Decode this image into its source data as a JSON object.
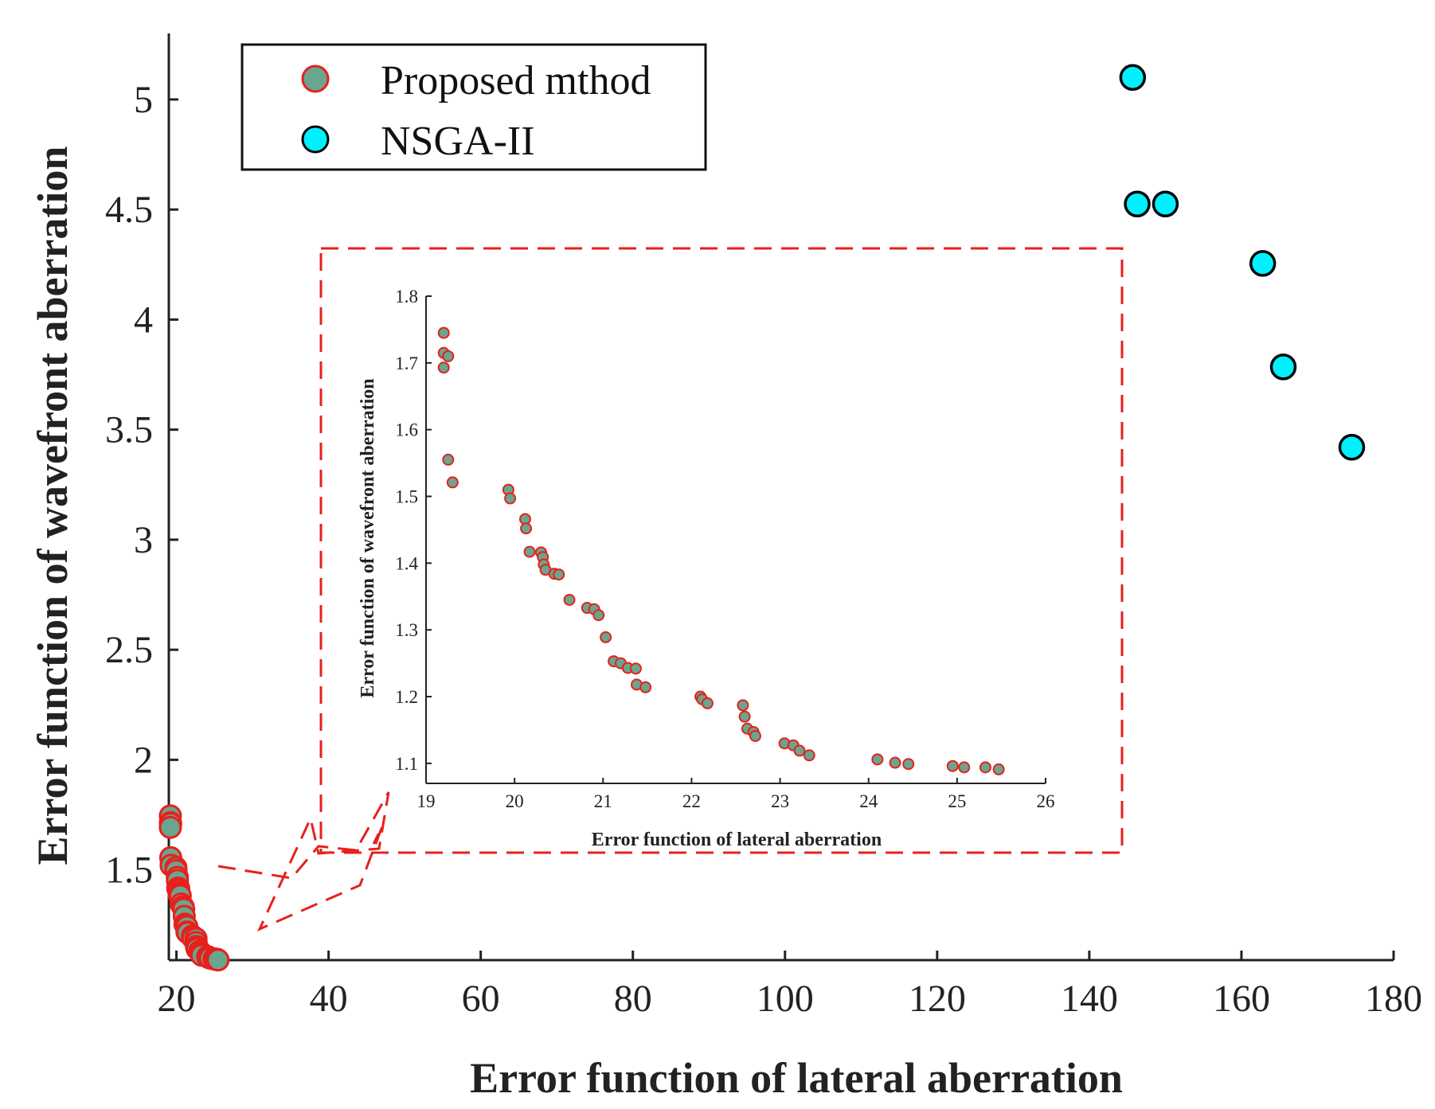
{
  "colors": {
    "proposed_fill": "#6aa58f",
    "proposed_edge": "#e8201c",
    "nsga_fill": "#00f0ff",
    "nsga_edge": "#000000",
    "box": "#e8201c",
    "axis": "#222222"
  },
  "chart_data": [
    {
      "type": "scatter",
      "name": "main",
      "xlabel": "Error function of lateral aberration",
      "ylabel": "Error function of wavefront aberration",
      "xlim": [
        19,
        180
      ],
      "ylim": [
        1.09,
        5.3
      ],
      "xticks": [
        "20",
        "40",
        "60",
        "80",
        "100",
        "120",
        "140",
        "160",
        "180"
      ],
      "yticks": [
        "1.5",
        "2",
        "2.5",
        "3",
        "3.5",
        "4",
        "4.5",
        "5"
      ],
      "legend": {
        "position": "top-left",
        "entries": [
          "Proposed mthod",
          "NSGA-II"
        ]
      },
      "series": [
        {
          "name": "Proposed mthod",
          "points": [
            [
              19.2,
              1.745
            ],
            [
              19.2,
              1.715
            ],
            [
              19.25,
              1.71
            ],
            [
              19.2,
              1.693
            ],
            [
              19.25,
              1.555
            ],
            [
              19.3,
              1.521
            ],
            [
              19.93,
              1.51
            ],
            [
              19.95,
              1.497
            ],
            [
              20.12,
              1.466
            ],
            [
              20.13,
              1.452
            ],
            [
              20.17,
              1.417
            ],
            [
              20.3,
              1.416
            ],
            [
              20.32,
              1.409
            ],
            [
              20.33,
              1.398
            ],
            [
              20.35,
              1.39
            ],
            [
              20.45,
              1.384
            ],
            [
              20.5,
              1.383
            ],
            [
              20.62,
              1.345
            ],
            [
              20.82,
              1.333
            ],
            [
              20.9,
              1.331
            ],
            [
              20.95,
              1.322
            ],
            [
              21.03,
              1.289
            ],
            [
              21.12,
              1.253
            ],
            [
              21.2,
              1.25
            ],
            [
              21.28,
              1.243
            ],
            [
              21.37,
              1.242
            ],
            [
              21.38,
              1.218
            ],
            [
              21.48,
              1.214
            ],
            [
              22.1,
              1.2
            ],
            [
              22.12,
              1.196
            ],
            [
              22.18,
              1.19
            ],
            [
              22.58,
              1.187
            ],
            [
              22.6,
              1.17
            ],
            [
              22.63,
              1.152
            ],
            [
              22.7,
              1.147
            ],
            [
              22.72,
              1.141
            ],
            [
              23.05,
              1.13
            ],
            [
              23.15,
              1.127
            ],
            [
              23.22,
              1.119
            ],
            [
              23.33,
              1.112
            ],
            [
              24.1,
              1.106
            ],
            [
              24.3,
              1.101
            ],
            [
              24.45,
              1.099
            ],
            [
              24.95,
              1.096
            ],
            [
              25.08,
              1.094
            ],
            [
              25.32,
              1.094
            ],
            [
              25.47,
              1.091
            ]
          ]
        },
        {
          "name": "NSGA-II",
          "points": [
            [
              145.7,
              5.1
            ],
            [
              146.3,
              4.525
            ],
            [
              150.0,
              4.525
            ],
            [
              162.8,
              4.255
            ],
            [
              165.5,
              3.785
            ],
            [
              174.5,
              3.42
            ]
          ]
        }
      ]
    },
    {
      "type": "scatter",
      "name": "inset",
      "xlabel": "Error function of lateral aberration",
      "ylabel": "Error function of wavefront aberration",
      "xlim": [
        19,
        26
      ],
      "ylim": [
        1.07,
        1.8
      ],
      "xticks": [
        "19",
        "20",
        "21",
        "22",
        "23",
        "24",
        "25",
        "26"
      ],
      "yticks": [
        "1.1",
        "1.2",
        "1.3",
        "1.4",
        "1.5",
        "1.6",
        "1.7",
        "1.8"
      ],
      "series_ref": "Proposed mthod"
    }
  ]
}
